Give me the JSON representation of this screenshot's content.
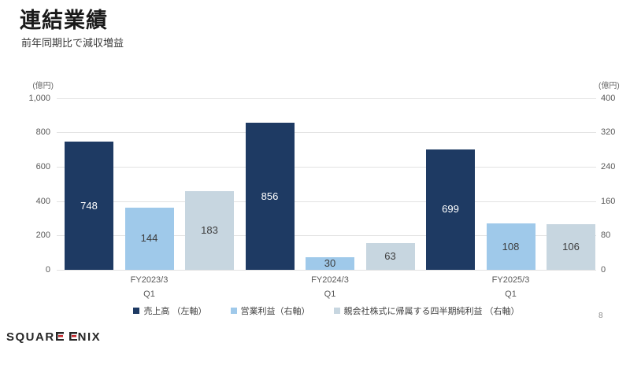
{
  "slide": {
    "title": "連結業績",
    "subtitle": "前年同期比で減収増益",
    "page_number": "8",
    "footer_logo": "SQUARE ENIX",
    "footer_logo_part1": "SQUAR",
    "footer_logo_part2": "NIX"
  },
  "colors": {
    "revenue_bar": "#1e3a63",
    "operating_income_bar": "#9fc9ea",
    "net_income_bar": "#c7d6e0",
    "gridline": "#e2e2e2",
    "axis_text": "#595959",
    "logo_red": "#c4282d"
  },
  "chart_data": {
    "type": "bar",
    "title": "連結業績",
    "subtitle": "前年同期比で減収増益",
    "categories": [
      {
        "fy": "FY2023/3",
        "q": "Q1"
      },
      {
        "fy": "FY2024/3",
        "q": "Q1"
      },
      {
        "fy": "FY2025/3",
        "q": "Q1"
      }
    ],
    "series": [
      {
        "key": "revenue",
        "name": "売上高 （左軸）",
        "axis": "left",
        "color": "#1e3a63",
        "label_color": "#ffffff",
        "values": [
          748,
          856,
          699
        ]
      },
      {
        "key": "operating_income",
        "name": "営業利益（右軸）",
        "axis": "right",
        "color": "#9fc9ea",
        "label_color": "#3d3d3d",
        "values": [
          144,
          30,
          108
        ]
      },
      {
        "key": "quarterly_net_income",
        "name": "親会社株式に帰属する四半期純利益 （右軸）",
        "axis": "right",
        "color": "#c7d6e0",
        "label_color": "#3d3d3d",
        "values": [
          183,
          63,
          106
        ]
      }
    ],
    "left_axis": {
      "unit": "(億円)",
      "min": 0,
      "max": 1000,
      "ticks": [
        "1,000",
        "800",
        "600",
        "400",
        "200",
        "0"
      ]
    },
    "right_axis": {
      "unit": "(億円)",
      "min": 0,
      "max": 400,
      "ticks": [
        "400",
        "320",
        "240",
        "160",
        "80",
        "0"
      ]
    },
    "grid": true,
    "legend_position": "bottom"
  }
}
